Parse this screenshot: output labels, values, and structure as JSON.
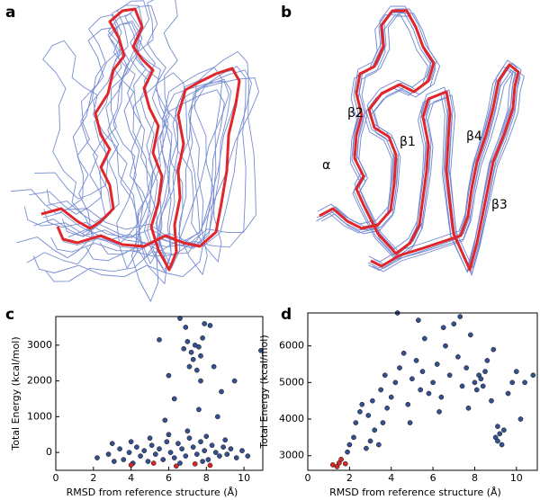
{
  "panel_labels": [
    "a",
    "b",
    "c",
    "d"
  ],
  "structure_labels": [
    "β2",
    "β1",
    "β4",
    "α",
    "β3"
  ],
  "chart_data": [
    {
      "type": "scatter",
      "x_label": "RMSD from reference structure (Å)",
      "y_label": "Total Energy (kcal/mol)",
      "xlim": [
        0,
        11
      ],
      "xticks": [
        0,
        2,
        4,
        6,
        8,
        10
      ],
      "ylim": [
        -500,
        3800
      ],
      "yticks": [
        0,
        1000,
        2000,
        3000
      ],
      "series": [
        {
          "color": "#34508f",
          "x": [
            2.2,
            2.8,
            3.1,
            3.4,
            3.6,
            3.9,
            4.1,
            4.3,
            4.5,
            4.7,
            4.9,
            5.1,
            5.3,
            5.5,
            5.7,
            5.9,
            6.1,
            6.3,
            6.5,
            6.7,
            6.9,
            7.1,
            7.3,
            7.5,
            7.7,
            7.9,
            8.1,
            8.3,
            8.5,
            8.7,
            8.9,
            9.1,
            9.3,
            9.6,
            9.9,
            10.2,
            6.0,
            7.0,
            8.0,
            5.0,
            4.0,
            9.0,
            3.0,
            6.6,
            7.8,
            6.8,
            7.0,
            7.2,
            7.4,
            7.6,
            7.8,
            7.3,
            7.5,
            7.1,
            6.9,
            7.9,
            8.2,
            5.5,
            6.0,
            8.4,
            7.7,
            8.8,
            9.5,
            10.9,
            6.3,
            7.6,
            5.8,
            8.6,
            6.6,
            7.7
          ],
          "values": [
            -150,
            -50,
            -250,
            100,
            -200,
            0,
            -300,
            150,
            -100,
            50,
            -250,
            200,
            -50,
            100,
            -200,
            300,
            0,
            -150,
            250,
            100,
            -100,
            400,
            150,
            -50,
            300,
            50,
            -200,
            200,
            0,
            -100,
            150,
            -50,
            100,
            -150,
            50,
            -100,
            500,
            600,
            450,
            400,
            300,
            350,
            250,
            -300,
            -250,
            2900,
            3100,
            2800,
            3000,
            2950,
            3200,
            2600,
            2300,
            2400,
            3500,
            3600,
            3550,
            3150,
            2150,
            2400,
            2000,
            1700,
            2000,
            2850,
            1500,
            1200,
            900,
            1000,
            3750,
            2700
          ]
        },
        {
          "color": "#d62728",
          "x": [
            4.0,
            5.2,
            6.4,
            7.4,
            8.2
          ],
          "values": [
            -350,
            -300,
            -380,
            -320,
            -360
          ]
        }
      ]
    },
    {
      "type": "scatter",
      "x_label": "RMSD from reference structure (Å)",
      "y_label": "Total Energy (kcal/mol)",
      "xlim": [
        0,
        11
      ],
      "xticks": [
        0,
        2,
        4,
        6,
        8,
        10
      ],
      "ylim": [
        2600,
        6900
      ],
      "yticks": [
        3000,
        4000,
        5000,
        6000
      ],
      "series": [
        {
          "color": "#34508f",
          "x": [
            1.9,
            2.0,
            2.2,
            2.3,
            2.5,
            2.6,
            2.8,
            3.0,
            3.2,
            3.1,
            3.4,
            3.6,
            3.8,
            3.5,
            4.0,
            4.2,
            4.4,
            4.6,
            4.8,
            5.0,
            5.2,
            5.4,
            5.5,
            5.6,
            5.8,
            6.0,
            6.2,
            6.4,
            6.6,
            6.8,
            7.0,
            7.2,
            7.4,
            7.6,
            7.8,
            8.0,
            8.1,
            8.2,
            8.3,
            8.4,
            8.5,
            8.6,
            8.8,
            9.0,
            9.1,
            9.2,
            9.3,
            9.4,
            9.1,
            9.6,
            9.8,
            10.0,
            10.4,
            10.8,
            5.3,
            6.5,
            7.3,
            4.3,
            3.7,
            4.9,
            6.3,
            7.7,
            8.9,
            10.2,
            2.9
          ],
          "values": [
            3100,
            3300,
            3500,
            3900,
            4200,
            4400,
            3200,
            3400,
            3700,
            4500,
            3300,
            3900,
            4300,
            4800,
            4600,
            5000,
            5400,
            5800,
            4400,
            5100,
            5600,
            4800,
            5300,
            6200,
            4700,
            5000,
            5500,
            4600,
            6000,
            5200,
            6600,
            5700,
            4900,
            5400,
            6300,
            5000,
            4800,
            5200,
            5100,
            4900,
            5300,
            5600,
            4500,
            3500,
            3400,
            3600,
            3300,
            3700,
            3800,
            4700,
            5000,
            5300,
            5000,
            5200,
            6700,
            6500,
            6800,
            6900,
            5200,
            3900,
            4200,
            4300,
            5900,
            4000,
            4100
          ]
        },
        {
          "color": "#d62728",
          "x": [
            1.2,
            1.5,
            1.6,
            1.8,
            1.4
          ],
          "values": [
            2750,
            2800,
            2900,
            2780,
            2700
          ]
        }
      ]
    }
  ]
}
